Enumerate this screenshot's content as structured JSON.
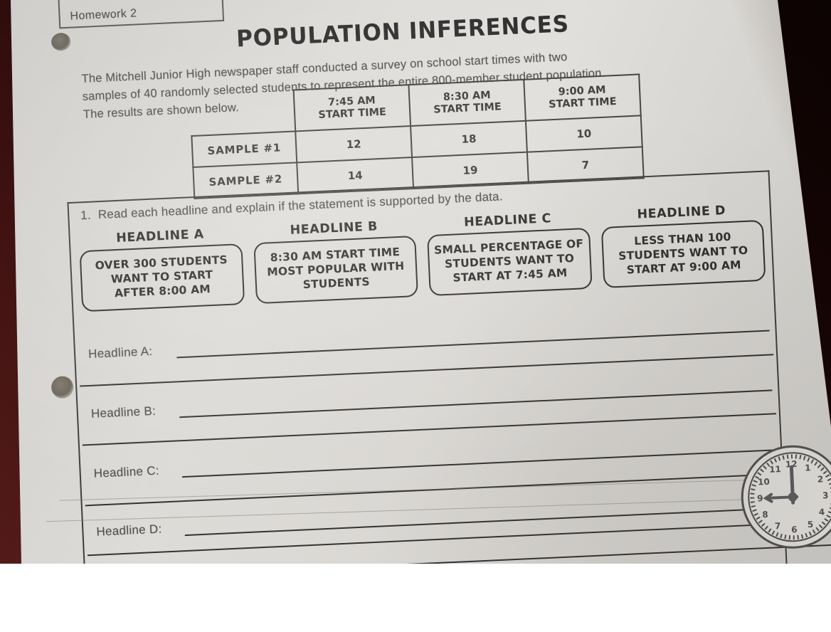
{
  "page": {
    "homework_label": "Homework 2",
    "title": "POPULATION INFERENCES",
    "intro": "The Mitchell Junior High newspaper staff conducted a survey on school start times with two\nsamples of 40 randomly selected students to represent the entire 800-member student population.\nThe results are shown below."
  },
  "table": {
    "columns": [
      "7:45 AM\nSTART TIME",
      "8:30 AM\nSTART TIME",
      "9:00 AM\nSTART TIME"
    ],
    "rows": [
      {
        "label": "SAMPLE #1",
        "values": [
          "12",
          "18",
          "10"
        ]
      },
      {
        "label": "SAMPLE #2",
        "values": [
          "14",
          "19",
          "7"
        ]
      }
    ]
  },
  "question": {
    "number": "1.",
    "text": "Read each headline and explain if the statement is supported by the data."
  },
  "headlines": [
    {
      "label": "HEADLINE A",
      "text": "OVER 300 STUDENTS\nWANT TO START\nAFTER 8:00 AM"
    },
    {
      "label": "HEADLINE B",
      "text": "8:30 AM START TIME\nMOST POPULAR WITH\nSTUDENTS"
    },
    {
      "label": "HEADLINE C",
      "text": "SMALL PERCENTAGE OF\nSTUDENTS WANT TO\nSTART AT 7:45 AM"
    },
    {
      "label": "HEADLINE D",
      "text": "LESS THAN 100\nSTUDENTS WANT TO\nSTART AT 9:00 AM"
    }
  ],
  "answers": [
    {
      "label": "Headline A:"
    },
    {
      "label": "Headline B:"
    },
    {
      "label": "Headline C:"
    },
    {
      "label": "Headline D:"
    }
  ],
  "clock": {
    "time_shown": "9:00",
    "numbers": [
      "12",
      "1",
      "2",
      "3",
      "4",
      "5",
      "6",
      "7",
      "8",
      "9",
      "10",
      "11"
    ]
  },
  "colors": {
    "desk": "#2c0c0b",
    "paper": "#dbd9d5",
    "ink": "#2e2e2e",
    "print_gray": "#515151"
  }
}
